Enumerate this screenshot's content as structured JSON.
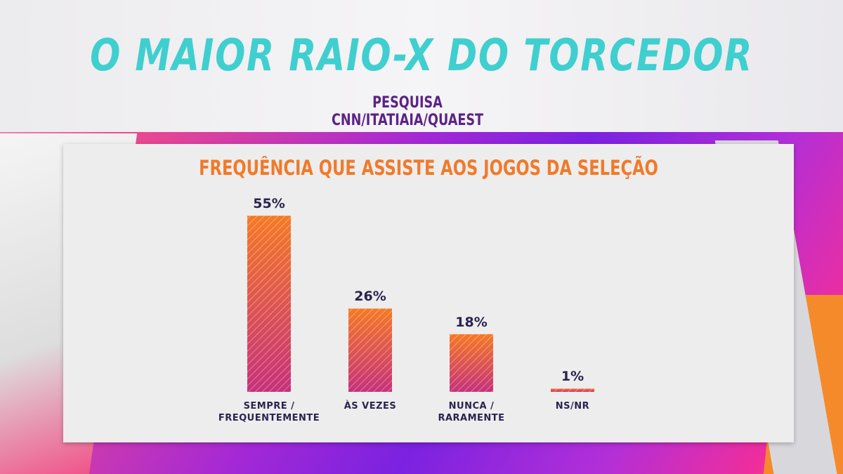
{
  "chart_data": {
    "type": "bar",
    "title": "O MAIOR RAIO-X DO TORCEDOR",
    "subtitle": "PESQUISA CNN/ITATIAIA/QUAEST",
    "chart_title": "FREQUÊNCIA QUE ASSISTE AOS JOGOS DA SELEÇÃO",
    "categories": [
      "SEMPRE / FREQUENTEMENTE",
      "ÀS VEZES",
      "NUNCA / RARAMENTE",
      "NS/NR"
    ],
    "values": [
      55,
      26,
      18,
      1
    ],
    "value_labels": [
      "55%",
      "26%",
      "18%",
      "1%"
    ],
    "color": [
      "#f57a24",
      "#c6317a"
    ]
  }
}
